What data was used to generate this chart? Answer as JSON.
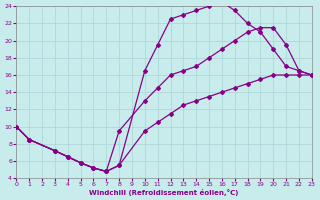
{
  "xlabel": "Windchill (Refroidissement éolien,°C)",
  "xlim": [
    0,
    23
  ],
  "ylim": [
    4,
    24
  ],
  "xticks": [
    0,
    1,
    2,
    3,
    4,
    5,
    6,
    7,
    8,
    9,
    10,
    11,
    12,
    13,
    14,
    15,
    16,
    17,
    18,
    19,
    20,
    21,
    22,
    23
  ],
  "yticks": [
    4,
    6,
    8,
    10,
    12,
    14,
    16,
    18,
    20,
    22,
    24
  ],
  "bg_color": "#c8ecec",
  "grid_color": "#b0d8d8",
  "line_color": "#880088",
  "curve1_x": [
    0,
    1,
    3,
    4,
    5,
    6,
    7,
    8,
    10,
    11,
    12,
    13,
    14,
    15,
    16,
    17,
    18,
    19,
    20,
    21,
    22,
    23
  ],
  "curve1_y": [
    10.0,
    8.5,
    7.2,
    6.5,
    5.8,
    5.2,
    4.8,
    5.5,
    16.5,
    19.5,
    22.5,
    23.0,
    23.5,
    24.0,
    24.5,
    23.5,
    22.0,
    21.0,
    19.0,
    17.0,
    16.5,
    16.0
  ],
  "curve2_x": [
    0,
    1,
    3,
    4,
    5,
    6,
    7,
    8,
    10,
    11,
    12,
    13,
    14,
    15,
    16,
    17,
    18,
    19,
    20,
    21,
    22,
    23
  ],
  "curve2_y": [
    10.0,
    8.5,
    7.2,
    6.5,
    5.8,
    5.2,
    4.8,
    5.5,
    9.5,
    10.5,
    11.5,
    12.5,
    13.0,
    13.5,
    14.0,
    14.5,
    15.0,
    15.5,
    16.0,
    16.0,
    16.0,
    16.0
  ],
  "curve3_x": [
    0,
    1,
    3,
    4,
    5,
    6,
    7,
    8,
    10,
    11,
    12,
    13,
    14,
    15,
    16,
    17,
    18,
    19,
    20,
    21,
    22,
    23
  ],
  "curve3_y": [
    10.0,
    8.5,
    7.2,
    6.5,
    5.8,
    5.2,
    4.8,
    9.5,
    13.0,
    14.5,
    16.0,
    16.5,
    17.0,
    18.0,
    19.0,
    20.0,
    21.0,
    21.5,
    21.5,
    19.5,
    16.5,
    16.0
  ]
}
